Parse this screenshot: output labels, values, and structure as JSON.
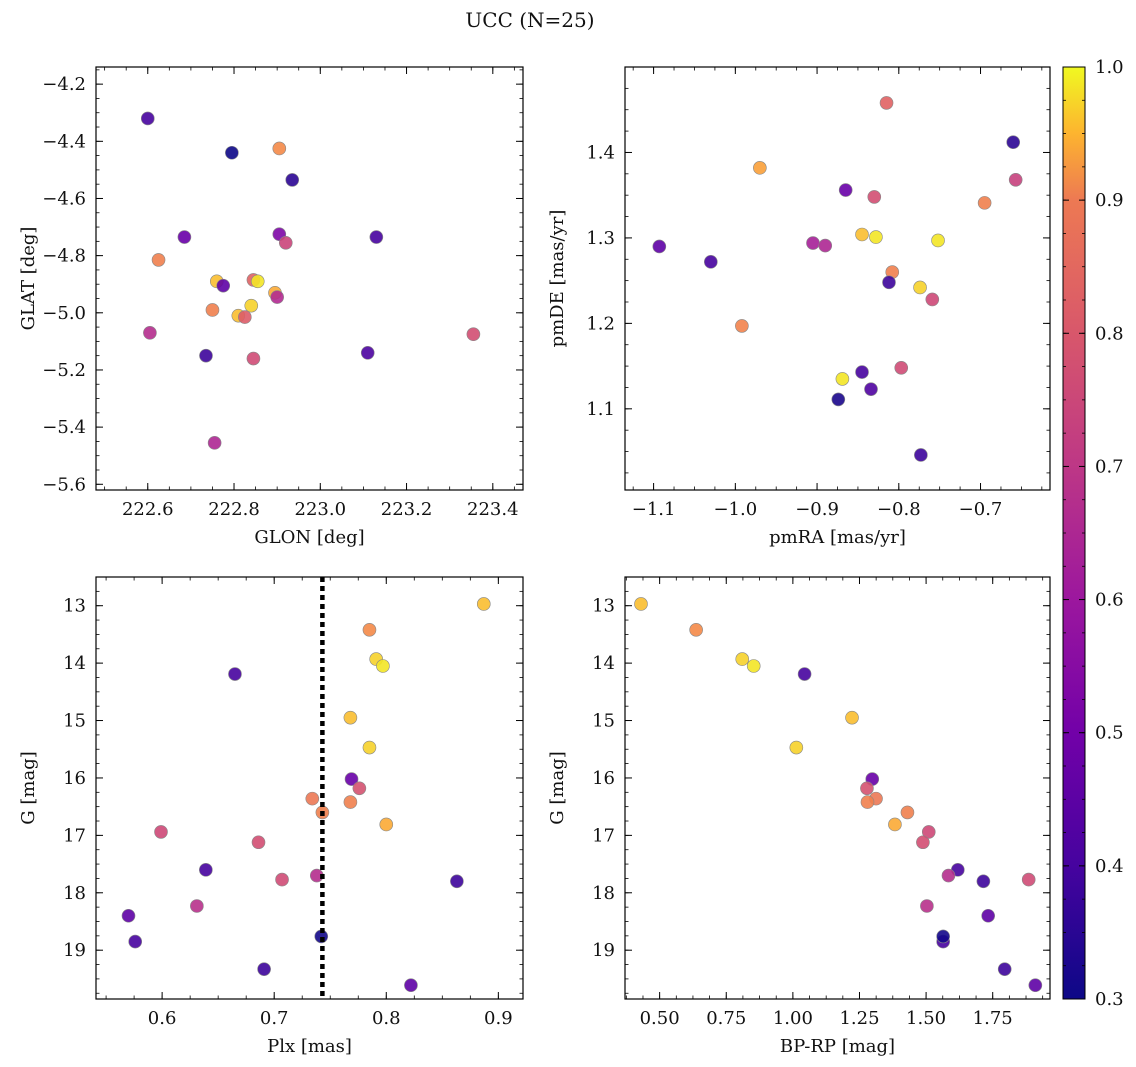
{
  "figure": {
    "title": "UCC (N=25)"
  },
  "colorbar": {
    "colormap": "plasma",
    "range": [
      0.3,
      1.0
    ],
    "ticks": [
      "0.3",
      "0.4",
      "0.5",
      "0.6",
      "0.7",
      "0.8",
      "0.9",
      "1.0"
    ],
    "tick_values": [
      0.3,
      0.4,
      0.5,
      0.6,
      0.7,
      0.8,
      0.9,
      1.0
    ]
  },
  "colors": {
    "marker_edge": "#888888",
    "threshold_line": "#000000",
    "axes": "#000000",
    "background": "#ffffff"
  },
  "chart_data": [
    {
      "type": "scatter",
      "title": "",
      "xlabel": "GLON [deg]",
      "ylabel": "GLAT [deg]",
      "xlim": [
        222.48,
        223.47
      ],
      "ylim": [
        -5.62,
        -4.14
      ],
      "xticks": [
        222.6,
        222.8,
        223.0,
        223.2,
        223.4
      ],
      "xtick_labels": [
        "222.6",
        "222.8",
        "223.0",
        "223.2",
        "223.4"
      ],
      "yticks": [
        -5.6,
        -5.4,
        -5.2,
        -5.0,
        -4.8,
        -4.6,
        -4.4,
        -4.2
      ],
      "ytick_labels": [
        "−5.6",
        "−5.4",
        "−5.2",
        "−5.0",
        "−4.8",
        "−4.6",
        "−4.4",
        "−4.2"
      ],
      "points": [
        {
          "x": 222.6,
          "y": -4.32,
          "c": 0.4
        },
        {
          "x": 222.795,
          "y": -4.44,
          "c": 0.3
        },
        {
          "x": 222.905,
          "y": -4.425,
          "c": 0.92
        },
        {
          "x": 222.935,
          "y": -4.535,
          "c": 0.35
        },
        {
          "x": 222.685,
          "y": -4.735,
          "c": 0.47
        },
        {
          "x": 222.905,
          "y": -4.725,
          "c": 0.52
        },
        {
          "x": 222.92,
          "y": -4.755,
          "c": 0.73
        },
        {
          "x": 223.13,
          "y": -4.735,
          "c": 0.4
        },
        {
          "x": 222.625,
          "y": -4.815,
          "c": 0.9
        },
        {
          "x": 222.76,
          "y": -4.89,
          "c": 0.97
        },
        {
          "x": 222.845,
          "y": -4.885,
          "c": 0.82
        },
        {
          "x": 222.855,
          "y": -4.89,
          "c": 0.99
        },
        {
          "x": 222.775,
          "y": -4.905,
          "c": 0.45
        },
        {
          "x": 222.895,
          "y": -4.93,
          "c": 0.96
        },
        {
          "x": 222.9,
          "y": -4.945,
          "c": 0.65
        },
        {
          "x": 222.75,
          "y": -4.99,
          "c": 0.9
        },
        {
          "x": 222.84,
          "y": -4.975,
          "c": 0.98
        },
        {
          "x": 222.81,
          "y": -5.01,
          "c": 0.97
        },
        {
          "x": 222.825,
          "y": -5.015,
          "c": 0.8
        },
        {
          "x": 222.605,
          "y": -5.07,
          "c": 0.66
        },
        {
          "x": 223.355,
          "y": -5.075,
          "c": 0.76
        },
        {
          "x": 222.735,
          "y": -5.15,
          "c": 0.38
        },
        {
          "x": 222.845,
          "y": -5.16,
          "c": 0.75
        },
        {
          "x": 223.11,
          "y": -5.14,
          "c": 0.41
        },
        {
          "x": 222.755,
          "y": -5.455,
          "c": 0.64
        }
      ]
    },
    {
      "type": "scatter",
      "title": "",
      "xlabel": "pmRA [mas/yr]",
      "ylabel": "pmDE [mas/yr]",
      "xlim": [
        -1.135,
        -0.615
      ],
      "ylim": [
        1.005,
        1.5
      ],
      "xticks": [
        -1.1,
        -1.0,
        -0.9,
        -0.8,
        -0.7
      ],
      "xtick_labels": [
        "−1.1",
        "−1.0",
        "−0.9",
        "−0.8",
        "−0.7"
      ],
      "yticks": [
        1.1,
        1.2,
        1.3,
        1.4
      ],
      "ytick_labels": [
        "1.1",
        "1.2",
        "1.3",
        "1.4"
      ],
      "points": [
        {
          "x": -0.815,
          "y": 1.458,
          "c": 0.82
        },
        {
          "x": -0.66,
          "y": 1.412,
          "c": 0.35
        },
        {
          "x": -0.97,
          "y": 1.382,
          "c": 0.95
        },
        {
          "x": -0.865,
          "y": 1.356,
          "c": 0.47
        },
        {
          "x": -0.83,
          "y": 1.348,
          "c": 0.76
        },
        {
          "x": -0.657,
          "y": 1.368,
          "c": 0.72
        },
        {
          "x": -0.695,
          "y": 1.341,
          "c": 0.9
        },
        {
          "x": -1.093,
          "y": 1.29,
          "c": 0.45
        },
        {
          "x": -0.905,
          "y": 1.294,
          "c": 0.62
        },
        {
          "x": -0.89,
          "y": 1.291,
          "c": 0.64
        },
        {
          "x": -0.845,
          "y": 1.304,
          "c": 0.97
        },
        {
          "x": -0.828,
          "y": 1.301,
          "c": 0.99
        },
        {
          "x": -0.752,
          "y": 1.297,
          "c": 0.99
        },
        {
          "x": -1.03,
          "y": 1.272,
          "c": 0.4
        },
        {
          "x": -0.808,
          "y": 1.26,
          "c": 0.9
        },
        {
          "x": -0.812,
          "y": 1.248,
          "c": 0.38
        },
        {
          "x": -0.774,
          "y": 1.242,
          "c": 0.98
        },
        {
          "x": -0.759,
          "y": 1.228,
          "c": 0.74
        },
        {
          "x": -0.992,
          "y": 1.197,
          "c": 0.91
        },
        {
          "x": -0.797,
          "y": 1.148,
          "c": 0.75
        },
        {
          "x": -0.845,
          "y": 1.143,
          "c": 0.4
        },
        {
          "x": -0.869,
          "y": 1.135,
          "c": 0.99
        },
        {
          "x": -0.834,
          "y": 1.123,
          "c": 0.42
        },
        {
          "x": -0.874,
          "y": 1.111,
          "c": 0.32
        },
        {
          "x": -0.773,
          "y": 1.046,
          "c": 0.38
        }
      ]
    },
    {
      "type": "scatter",
      "title": "",
      "xlabel": "Plx [mas]",
      "ylabel": "G [mag]",
      "xlim": [
        0.541,
        0.922
      ],
      "ylim": [
        19.85,
        12.5
      ],
      "y_inverted": true,
      "xticks": [
        0.6,
        0.7,
        0.8,
        0.9
      ],
      "xtick_labels": [
        "0.6",
        "0.7",
        "0.8",
        "0.9"
      ],
      "yticks": [
        13,
        14,
        15,
        16,
        17,
        18,
        19
      ],
      "ytick_labels": [
        "13",
        "14",
        "15",
        "16",
        "17",
        "18",
        "19"
      ],
      "vline": {
        "x": 0.743,
        "style": "dotted"
      },
      "points": [
        {
          "x": 0.887,
          "y": 12.97,
          "c": 0.97
        },
        {
          "x": 0.785,
          "y": 13.42,
          "c": 0.92
        },
        {
          "x": 0.791,
          "y": 13.93,
          "c": 0.98
        },
        {
          "x": 0.797,
          "y": 14.05,
          "c": 0.99
        },
        {
          "x": 0.665,
          "y": 14.19,
          "c": 0.4
        },
        {
          "x": 0.768,
          "y": 14.95,
          "c": 0.97
        },
        {
          "x": 0.785,
          "y": 15.47,
          "c": 0.98
        },
        {
          "x": 0.769,
          "y": 16.02,
          "c": 0.47
        },
        {
          "x": 0.776,
          "y": 16.18,
          "c": 0.77
        },
        {
          "x": 0.734,
          "y": 16.36,
          "c": 0.88
        },
        {
          "x": 0.768,
          "y": 16.42,
          "c": 0.9
        },
        {
          "x": 0.743,
          "y": 16.6,
          "c": 0.9
        },
        {
          "x": 0.8,
          "y": 16.81,
          "c": 0.96
        },
        {
          "x": 0.599,
          "y": 16.94,
          "c": 0.74
        },
        {
          "x": 0.686,
          "y": 17.12,
          "c": 0.76
        },
        {
          "x": 0.639,
          "y": 17.6,
          "c": 0.4
        },
        {
          "x": 0.738,
          "y": 17.7,
          "c": 0.66
        },
        {
          "x": 0.707,
          "y": 17.77,
          "c": 0.75
        },
        {
          "x": 0.863,
          "y": 17.8,
          "c": 0.38
        },
        {
          "x": 0.631,
          "y": 18.23,
          "c": 0.67
        },
        {
          "x": 0.57,
          "y": 18.4,
          "c": 0.45
        },
        {
          "x": 0.576,
          "y": 18.85,
          "c": 0.4
        },
        {
          "x": 0.742,
          "y": 18.76,
          "c": 0.31
        },
        {
          "x": 0.691,
          "y": 19.33,
          "c": 0.38
        },
        {
          "x": 0.822,
          "y": 19.61,
          "c": 0.45
        }
      ]
    },
    {
      "type": "scatter",
      "title": "",
      "xlabel": "BP-RP [mag]",
      "ylabel": "G [mag]",
      "xlim": [
        0.37,
        1.965
      ],
      "ylim": [
        19.85,
        12.5
      ],
      "y_inverted": true,
      "xticks": [
        0.5,
        0.75,
        1.0,
        1.25,
        1.5,
        1.75
      ],
      "xtick_labels": [
        "0.50",
        "0.75",
        "1.00",
        "1.25",
        "1.50",
        "1.75"
      ],
      "yticks": [
        13,
        14,
        15,
        16,
        17,
        18,
        19
      ],
      "ytick_labels": [
        "13",
        "14",
        "15",
        "16",
        "17",
        "18",
        "19"
      ],
      "points": [
        {
          "x": 0.43,
          "y": 12.97,
          "c": 0.97
        },
        {
          "x": 0.637,
          "y": 13.42,
          "c": 0.92
        },
        {
          "x": 0.81,
          "y": 13.93,
          "c": 0.98
        },
        {
          "x": 0.853,
          "y": 14.05,
          "c": 0.99
        },
        {
          "x": 1.044,
          "y": 14.19,
          "c": 0.4
        },
        {
          "x": 1.222,
          "y": 14.95,
          "c": 0.97
        },
        {
          "x": 1.013,
          "y": 15.47,
          "c": 0.98
        },
        {
          "x": 1.298,
          "y": 16.02,
          "c": 0.47
        },
        {
          "x": 1.278,
          "y": 16.18,
          "c": 0.77
        },
        {
          "x": 1.312,
          "y": 16.36,
          "c": 0.88
        },
        {
          "x": 1.28,
          "y": 16.42,
          "c": 0.9
        },
        {
          "x": 1.43,
          "y": 16.6,
          "c": 0.9
        },
        {
          "x": 1.383,
          "y": 16.81,
          "c": 0.96
        },
        {
          "x": 1.51,
          "y": 16.94,
          "c": 0.74
        },
        {
          "x": 1.488,
          "y": 17.12,
          "c": 0.76
        },
        {
          "x": 1.619,
          "y": 17.6,
          "c": 0.4
        },
        {
          "x": 1.584,
          "y": 17.7,
          "c": 0.66
        },
        {
          "x": 1.885,
          "y": 17.77,
          "c": 0.75
        },
        {
          "x": 1.715,
          "y": 17.8,
          "c": 0.38
        },
        {
          "x": 1.503,
          "y": 18.23,
          "c": 0.67
        },
        {
          "x": 1.733,
          "y": 18.4,
          "c": 0.45
        },
        {
          "x": 1.564,
          "y": 18.85,
          "c": 0.4
        },
        {
          "x": 1.564,
          "y": 18.76,
          "c": 0.31
        },
        {
          "x": 1.795,
          "y": 19.33,
          "c": 0.38
        },
        {
          "x": 1.91,
          "y": 19.61,
          "c": 0.45
        }
      ]
    }
  ]
}
